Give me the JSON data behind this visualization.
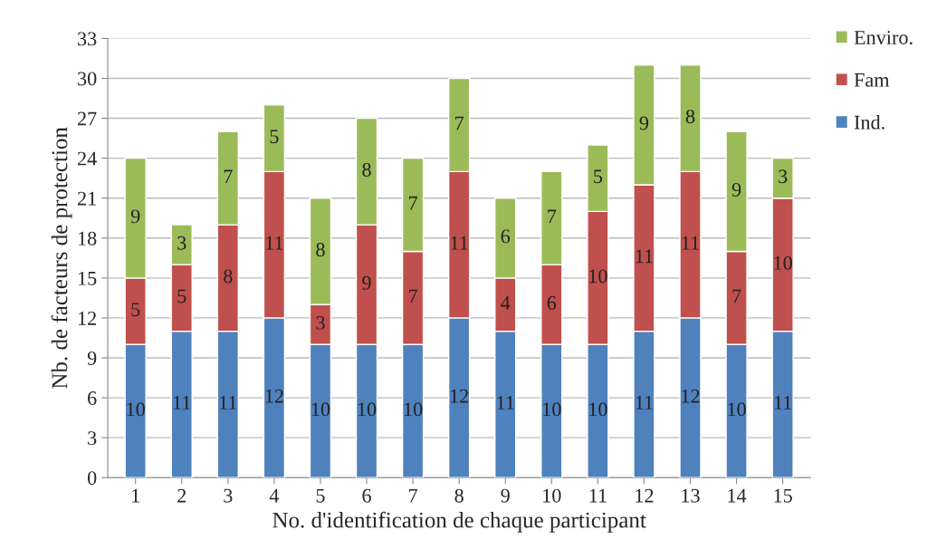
{
  "chart_data": {
    "type": "bar",
    "stacked": true,
    "xlabel": "No. d'identification de chaque participant",
    "ylabel": "Nb. de facteurs de protection",
    "categories": [
      "1",
      "2",
      "3",
      "4",
      "5",
      "6",
      "7",
      "8",
      "9",
      "10",
      "11",
      "12",
      "13",
      "14",
      "15"
    ],
    "series": [
      {
        "name": "Ind.",
        "color": "#4f81bd",
        "values": [
          10,
          11,
          11,
          12,
          10,
          10,
          10,
          12,
          11,
          10,
          10,
          11,
          12,
          10,
          11
        ]
      },
      {
        "name": "Fam",
        "color": "#c0504d",
        "values": [
          5,
          5,
          8,
          11,
          3,
          9,
          7,
          11,
          4,
          6,
          10,
          11,
          11,
          7,
          10
        ]
      },
      {
        "name": "Enviro.",
        "color": "#9bbb59",
        "values": [
          9,
          3,
          7,
          5,
          8,
          8,
          7,
          7,
          6,
          7,
          5,
          9,
          8,
          9,
          3
        ]
      }
    ],
    "ylim": [
      0,
      33
    ],
    "yticks": [
      0,
      3,
      6,
      9,
      12,
      15,
      18,
      21,
      24,
      27,
      30,
      33
    ],
    "grid": "y",
    "legend": "top right",
    "data_labels": true
  }
}
